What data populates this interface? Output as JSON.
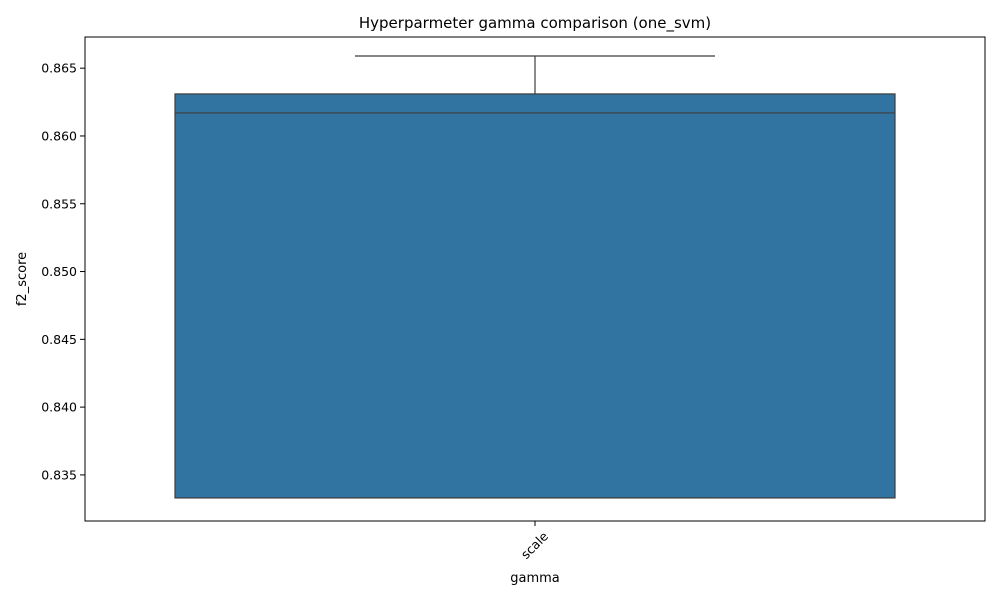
{
  "chart_data": {
    "type": "box",
    "title": "Hyperparmeter gamma comparison (one_svm)",
    "xlabel": "gamma",
    "ylabel": "f2_score",
    "categories": [
      "scale"
    ],
    "boxes": [
      {
        "category": "scale",
        "whisker_low": 0.8333,
        "q1": 0.8333,
        "median": 0.8617,
        "q3": 0.8631,
        "whisker_high": 0.8659
      }
    ],
    "ylim": [
      0.8316,
      0.8673
    ],
    "yticks": [
      0.835,
      0.84,
      0.845,
      0.85,
      0.855,
      0.86,
      0.865
    ],
    "ytick_labels": [
      "0.835",
      "0.840",
      "0.845",
      "0.850",
      "0.855",
      "0.860",
      "0.865"
    ],
    "x_tick_rotation": -45,
    "grid": false,
    "colors": {
      "box_fill": "#3274a1",
      "line": "#3d3d3d",
      "axes": "#000000"
    }
  }
}
